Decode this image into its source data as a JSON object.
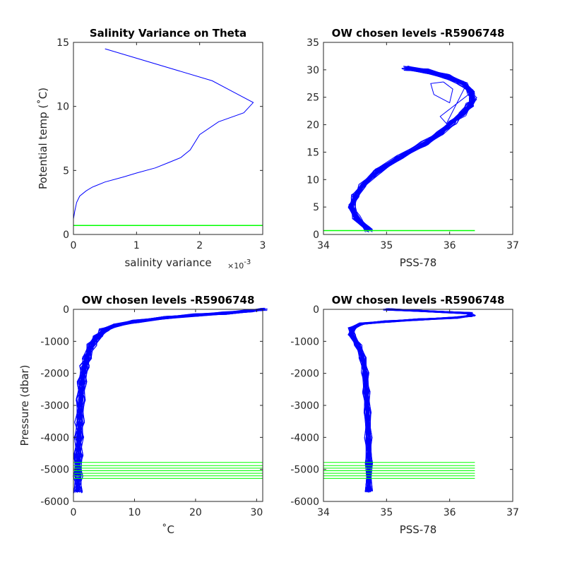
{
  "chart_data": [
    {
      "type": "line",
      "title": "Salinity Variance on Theta",
      "xlabel": "salinity variance",
      "x_exponent": "×10",
      "x_exponent_power": "-3",
      "ylabel": "Potential temp (˚C)",
      "xlim": [
        0,
        3
      ],
      "ylim": [
        0,
        15
      ],
      "xticks": [
        "0",
        "1",
        "2",
        "3"
      ],
      "yticks": [
        "0",
        "5",
        "10",
        "15"
      ],
      "series": [
        {
          "color": "#0000ff",
          "x": [
            0.5,
            2.2,
            2.85,
            2.7,
            2.3,
            2.0,
            1.85,
            1.7,
            1.5,
            1.3,
            1.0,
            0.8,
            0.5,
            0.35,
            0.3,
            0.2,
            0.1,
            0.05,
            0.02,
            0.0,
            0.0
          ],
          "y": [
            14.5,
            12.0,
            10.3,
            9.5,
            8.8,
            7.8,
            6.6,
            6.0,
            5.6,
            5.2,
            4.8,
            4.5,
            4.1,
            3.8,
            3.7,
            3.4,
            3.0,
            2.5,
            1.8,
            1.2,
            0.8
          ]
        },
        {
          "color": "#00ff00",
          "x": [
            0,
            3
          ],
          "y": [
            0.7,
            0.7
          ]
        }
      ]
    },
    {
      "type": "line",
      "title": "OW chosen levels -R5906748",
      "xlabel": "PSS-78",
      "ylabel": "",
      "xlim": [
        34,
        37
      ],
      "ylim": [
        0,
        35
      ],
      "xticks": [
        "34",
        "35",
        "36",
        "37"
      ],
      "yticks": [
        "0",
        "5",
        "10",
        "15",
        "20",
        "25",
        "30",
        "35"
      ],
      "series": [
        {
          "name": "",
          "color": "#0000ff",
          "x": [
            34.72,
            34.52,
            34.45,
            34.5,
            34.62,
            34.85,
            35.2,
            35.6,
            35.85,
            36.05,
            36.2,
            36.32,
            36.37,
            36.34,
            36.22,
            35.95,
            35.6,
            35.3
          ],
          "y": [
            0.8,
            3.0,
            5.0,
            7.0,
            9.0,
            11.5,
            14.0,
            16.5,
            18.5,
            20.5,
            22.0,
            23.5,
            24.5,
            26.0,
            27.5,
            28.8,
            29.8,
            30.3
          ]
        },
        {
          "color": "#00ff00",
          "x": [
            34,
            36.4
          ],
          "y": [
            0.7,
            0.7
          ]
        }
      ]
    },
    {
      "type": "line",
      "title": "OW chosen levels -R5906748",
      "xlabel": "˚C",
      "ylabel": "Pressure (dbar)",
      "xlim": [
        0,
        31
      ],
      "ylim": [
        -6000,
        0
      ],
      "xticks": [
        "0",
        "10",
        "20",
        "30"
      ],
      "yticks": [
        "-6000",
        "-5000",
        "-4000",
        "-3000",
        "-2000",
        "-1000",
        "0"
      ],
      "series": [
        {
          "color": "#0000ff",
          "x": [
            31,
            29,
            25,
            20,
            15,
            10,
            7,
            5,
            4,
            3,
            2.2,
            1.8,
            1.4,
            1.2,
            1.0,
            0.9,
            0.8,
            0.75,
            0.72
          ],
          "y": [
            0,
            -50,
            -120,
            -180,
            -260,
            -380,
            -500,
            -650,
            -850,
            -1100,
            -1500,
            -1800,
            -2300,
            -2800,
            -3500,
            -4000,
            -4600,
            -5200,
            -5700
          ]
        },
        {
          "color": "#00ff00",
          "x": [
            0,
            31
          ],
          "y": [
            -4800,
            -4800
          ]
        }
      ]
    },
    {
      "type": "line",
      "title": "OW chosen levels -R5906748",
      "xlabel": "PSS-78",
      "ylabel": "",
      "xlim": [
        34,
        37
      ],
      "ylim": [
        -6000,
        0
      ],
      "xticks": [
        "34",
        "35",
        "36",
        "37"
      ],
      "yticks": [
        "-6000",
        "-5000",
        "-4000",
        "-3000",
        "-2000",
        "-1000",
        "0"
      ],
      "series": [
        {
          "color": "#0000ff",
          "x": [
            35.0,
            36.3,
            36.35,
            36.1,
            35.5,
            35.0,
            34.6,
            34.45,
            34.45,
            34.55,
            34.62,
            34.66,
            34.68,
            34.7,
            34.71,
            34.72,
            34.72
          ],
          "y": [
            0,
            -120,
            -200,
            -260,
            -320,
            -380,
            -450,
            -600,
            -800,
            -1100,
            -1500,
            -2000,
            -2600,
            -3200,
            -4000,
            -4800,
            -5700
          ]
        },
        {
          "color": "#00ff00",
          "x": [
            34,
            36.4
          ],
          "y": [
            -4800,
            -4800
          ]
        }
      ]
    }
  ]
}
